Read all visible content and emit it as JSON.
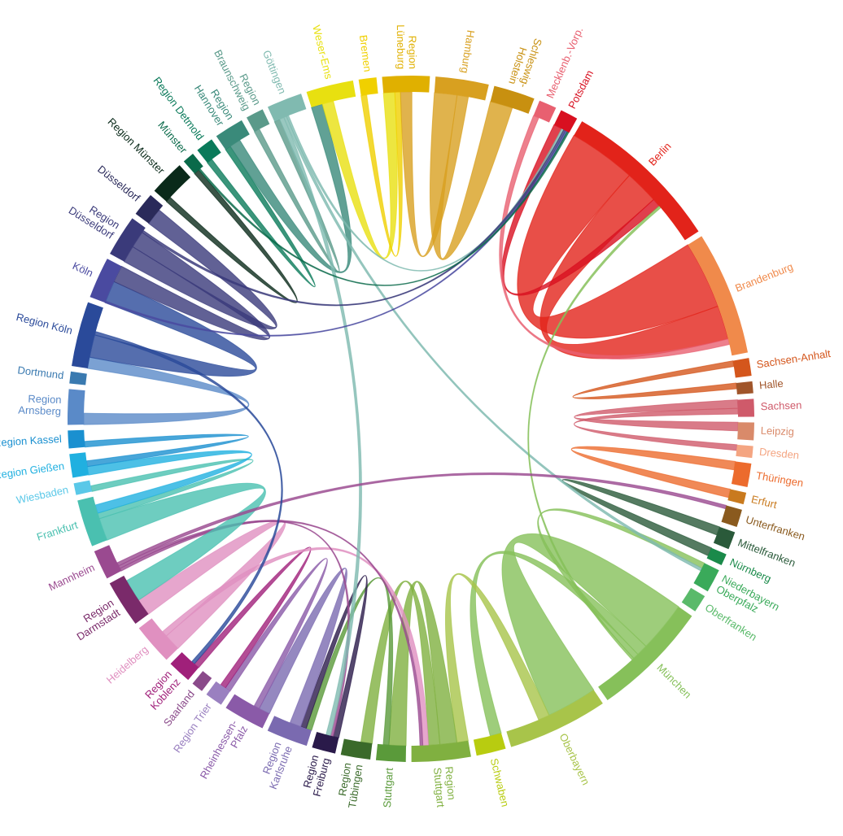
{
  "chart_data": {
    "type": "chord",
    "segments": [
      {
        "name": [
          "Mecklenb.-Vorp."
        ],
        "color": "#e86070",
        "value": 3
      },
      {
        "name": [
          "Potsdam"
        ],
        "color": "#d81020",
        "value": 3
      },
      {
        "name": [
          "Berlin"
        ],
        "color": "#e2231a",
        "value": 27
      },
      {
        "name": [
          "Brandenburg"
        ],
        "color": "#f08a4b",
        "value": 21
      },
      {
        "name": [
          "Sachsen-Anhalt"
        ],
        "color": "#d4561c",
        "value": 3
      },
      {
        "name": [
          "Halle"
        ],
        "color": "#a0552a",
        "value": 2
      },
      {
        "name": [
          "Sachsen"
        ],
        "color": "#cf5a6a",
        "value": 3
      },
      {
        "name": [
          "Leipzig"
        ],
        "color": "#d98a6a",
        "value": 3
      },
      {
        "name": [
          "Dresden"
        ],
        "color": "#f4a582",
        "value": 2
      },
      {
        "name": [
          "Thüringen"
        ],
        "color": "#ec6b2d",
        "value": 4
      },
      {
        "name": [
          "Erfurt"
        ],
        "color": "#c97a1e",
        "value": 2
      },
      {
        "name": [
          "Unterfranken"
        ],
        "color": "#8a5a1e",
        "value": 3
      },
      {
        "name": [
          "Mittelfranken"
        ],
        "color": "#2a5a3a",
        "value": 3
      },
      {
        "name": [
          "Nürnberg"
        ],
        "color": "#1a8a4a",
        "value": 2
      },
      {
        "name": [
          "Niederbayern",
          "Oberpfalz"
        ],
        "color": "#3aaa5a",
        "value": 4
      },
      {
        "name": [
          "Oberfranken"
        ],
        "color": "#5aba6a",
        "value": 3
      },
      {
        "name": [
          "München"
        ],
        "color": "#86c05a",
        "value": 20
      },
      {
        "name": [
          "Oberbayern"
        ],
        "color": "#a8c44a",
        "value": 17
      },
      {
        "name": [
          "Schwaben"
        ],
        "color": "#b8cc10",
        "value": 5
      },
      {
        "name": [
          "Region",
          "Stuttgart"
        ],
        "color": "#80b040",
        "value": 10
      },
      {
        "name": [
          "Stuttgart"
        ],
        "color": "#5a9a3a",
        "value": 5
      },
      {
        "name": [
          "Region",
          "Tübingen"
        ],
        "color": "#3a6a2a",
        "value": 5
      },
      {
        "name": [
          "Region",
          "Freiburg"
        ],
        "color": "#2a1a4a",
        "value": 4
      },
      {
        "name": [
          "Region",
          "Karlsruhe"
        ],
        "color": "#7a6ab0",
        "value": 7
      },
      {
        "name": [
          "Rheinhessen-",
          "Pfalz"
        ],
        "color": "#8a5aa8",
        "value": 7
      },
      {
        "name": [
          "Region Trier"
        ],
        "color": "#9a80c0",
        "value": 3
      },
      {
        "name": [
          "Saarland"
        ],
        "color": "#8a4a8a",
        "value": 2
      },
      {
        "name": [
          "Region",
          "Koblenz"
        ],
        "color": "#a0207a",
        "value": 4
      },
      {
        "name": [
          "Heidelberg"
        ],
        "color": "#e090c0",
        "value": 7
      },
      {
        "name": [
          "Region",
          "Darmstadt"
        ],
        "color": "#7a2a6a",
        "value": 8
      },
      {
        "name": [
          "Mannheim"
        ],
        "color": "#9a4a90",
        "value": 5
      },
      {
        "name": [
          "Frankfurt"
        ],
        "color": "#4ac0b0",
        "value": 8
      },
      {
        "name": [
          "Wiesbaden"
        ],
        "color": "#5ac8e8",
        "value": 2
      },
      {
        "name": [
          "Region Gießen"
        ],
        "color": "#20b0e0",
        "value": 4
      },
      {
        "name": [
          "Region Kassel"
        ],
        "color": "#1a90d0",
        "value": 3
      },
      {
        "name": [
          "Region",
          "Arnsberg"
        ],
        "color": "#5a8ac8",
        "value": 6
      },
      {
        "name": [
          "Dortmund"
        ],
        "color": "#3a7ab0",
        "value": 2
      },
      {
        "name": [
          "Region Köln"
        ],
        "color": "#2a4a9a",
        "value": 11
      },
      {
        "name": [
          "Köln"
        ],
        "color": "#4a4aa0",
        "value": 7
      },
      {
        "name": [
          "Region",
          "Düsseldorf"
        ],
        "color": "#3a3a7a",
        "value": 7
      },
      {
        "name": [
          "Düsseldorf"
        ],
        "color": "#2a2a5a",
        "value": 4
      },
      {
        "name": [
          "Region Münster"
        ],
        "color": "#0a2a1a",
        "value": 6
      },
      {
        "name": [
          "Münster"
        ],
        "color": "#0a6a4a",
        "value": 2
      },
      {
        "name": [
          "Region Detmold"
        ],
        "color": "#0a7a5a",
        "value": 3
      },
      {
        "name": [
          "Region",
          "Hannover"
        ],
        "color": "#3a8a7a",
        "value": 5
      },
      {
        "name": [
          "Region",
          "Braunschweig"
        ],
        "color": "#5a9a8a",
        "value": 3
      },
      {
        "name": [
          "Göttingen"
        ],
        "color": "#80bab0",
        "value": 6
      },
      {
        "name": [
          "Weser-Ems"
        ],
        "color": "#e8e010",
        "value": 8
      },
      {
        "name": [
          "Bremen"
        ],
        "color": "#f0d000",
        "value": 3
      },
      {
        "name": [
          "Region",
          "Lüneburg"
        ],
        "color": "#e0b000",
        "value": 8
      },
      {
        "name": [
          "Hamburg"
        ],
        "color": "#d8a020",
        "value": 9
      },
      {
        "name": [
          "Schleswig-",
          "Holstein"
        ],
        "color": "#c89010",
        "value": 7
      }
    ],
    "chords": [
      {
        "source": 2,
        "target": 3,
        "value": 12
      },
      {
        "source": 2,
        "target": 3,
        "value": 6
      },
      {
        "source": 1,
        "target": 2,
        "value": 1.5
      },
      {
        "source": 0,
        "target": 3,
        "value": 1
      },
      {
        "source": 4,
        "target": 5,
        "value": 1
      },
      {
        "source": 6,
        "target": 7,
        "value": 1.5
      },
      {
        "source": 6,
        "target": 8,
        "value": 1
      },
      {
        "source": 9,
        "target": 10,
        "value": 1.5
      },
      {
        "source": 12,
        "target": 13,
        "value": 1.5
      },
      {
        "source": 16,
        "target": 17,
        "value": 9
      },
      {
        "source": 16,
        "target": 18,
        "value": 2
      },
      {
        "source": 16,
        "target": 14,
        "value": 1
      },
      {
        "source": 17,
        "target": 19,
        "value": 2
      },
      {
        "source": 19,
        "target": 20,
        "value": 3
      },
      {
        "source": 19,
        "target": 21,
        "value": 2
      },
      {
        "source": 20,
        "target": 23,
        "value": 1
      },
      {
        "source": 22,
        "target": 23,
        "value": 1
      },
      {
        "source": 23,
        "target": 24,
        "value": 2
      },
      {
        "source": 24,
        "target": 25,
        "value": 1
      },
      {
        "source": 27,
        "target": 25,
        "value": 1
      },
      {
        "source": 28,
        "target": 29,
        "value": 3
      },
      {
        "source": 28,
        "target": 19,
        "value": 1
      },
      {
        "source": 30,
        "target": 22,
        "value": 0.5
      },
      {
        "source": 30,
        "target": 19,
        "value": 0.5
      },
      {
        "source": 31,
        "target": 29,
        "value": 4
      },
      {
        "source": 31,
        "target": 32,
        "value": 1
      },
      {
        "source": 33,
        "target": 31,
        "value": 1.5
      },
      {
        "source": 34,
        "target": 33,
        "value": 1
      },
      {
        "source": 35,
        "target": 37,
        "value": 2
      },
      {
        "source": 37,
        "target": 38,
        "value": 4
      },
      {
        "source": 39,
        "target": 40,
        "value": 3
      },
      {
        "source": 39,
        "target": 38,
        "value": 3
      },
      {
        "source": 41,
        "target": 42,
        "value": 1
      },
      {
        "source": 43,
        "target": 44,
        "value": 1
      },
      {
        "source": 44,
        "target": 47,
        "value": 2
      },
      {
        "source": 45,
        "target": 46,
        "value": 1
      },
      {
        "source": 47,
        "target": 49,
        "value": 2
      },
      {
        "source": 48,
        "target": 49,
        "value": 1
      },
      {
        "source": 50,
        "target": 51,
        "value": 4
      },
      {
        "source": 50,
        "target": 49,
        "value": 2
      },
      {
        "source": 46,
        "target": 22,
        "value": 0.8
      },
      {
        "source": 46,
        "target": 14,
        "value": 0.5
      },
      {
        "source": 46,
        "target": 1,
        "value": 0.4
      },
      {
        "source": 16,
        "target": 2,
        "value": 0.4
      },
      {
        "source": 30,
        "target": 11,
        "value": 0.6
      },
      {
        "source": 37,
        "target": 27,
        "value": 0.6
      },
      {
        "source": 39,
        "target": 1,
        "value": 0.4
      },
      {
        "source": 38,
        "target": 1,
        "value": 0.3
      },
      {
        "source": 42,
        "target": 1,
        "value": 0.3
      }
    ]
  }
}
